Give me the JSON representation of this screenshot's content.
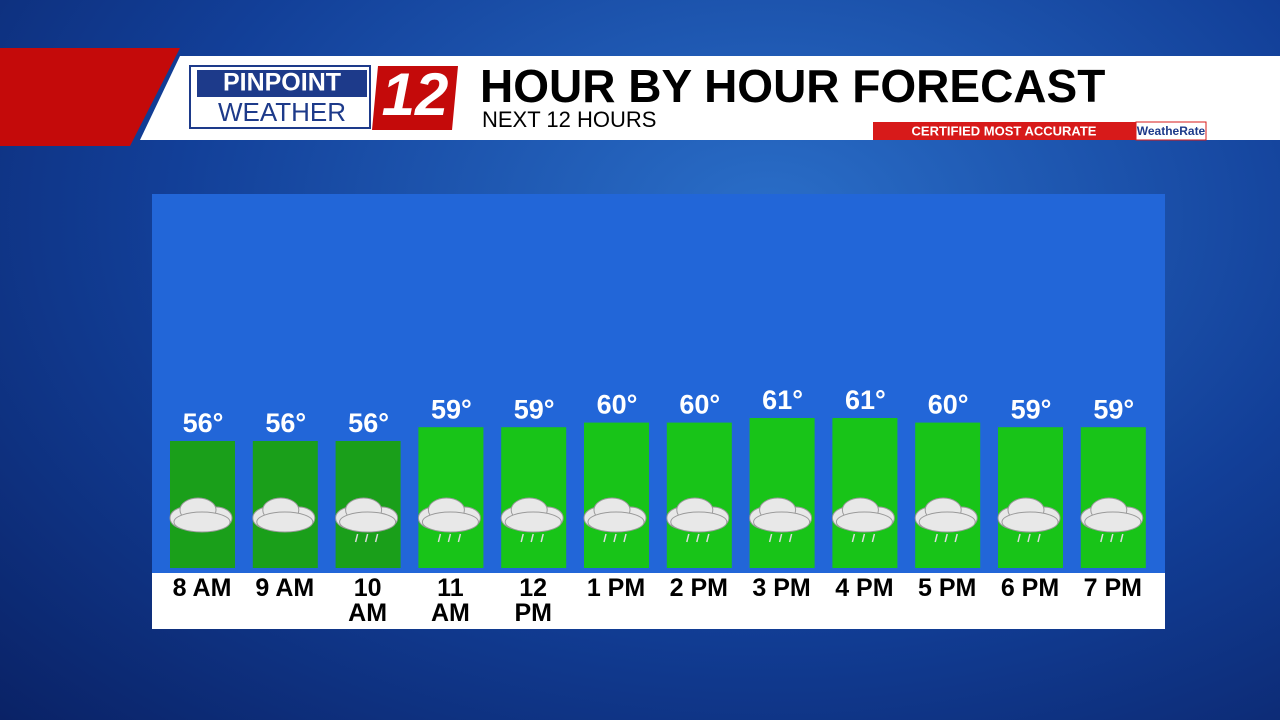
{
  "header": {
    "brand_top": "PINPOINT",
    "brand_bottom": "WEATHER",
    "channel": "12",
    "badge": "CERTIFIED MOST ACCURATE",
    "badge_brand": "WeatheRate"
  },
  "chart_data": {
    "type": "bar",
    "title": "HOUR BY HOUR FORECAST",
    "subtitle": "NEXT 12 HOURS",
    "categories": [
      "8 AM",
      "9 AM",
      "10 AM",
      "11 AM",
      "12 PM",
      "1 PM",
      "2 PM",
      "3 PM",
      "4 PM",
      "5 PM",
      "6 PM",
      "7 PM"
    ],
    "values": [
      56,
      56,
      56,
      59,
      59,
      60,
      60,
      61,
      61,
      60,
      59,
      59
    ],
    "value_labels": [
      "56°",
      "56°",
      "56°",
      "59°",
      "59°",
      "60°",
      "60°",
      "61°",
      "61°",
      "60°",
      "59°",
      "59°"
    ],
    "colors": [
      "#1a9f1a",
      "#1a9f1a",
      "#1a9f1a",
      "#18c418",
      "#18c418",
      "#18c418",
      "#18c418",
      "#18c418",
      "#18c418",
      "#18c418",
      "#18c418",
      "#18c418"
    ]
  }
}
